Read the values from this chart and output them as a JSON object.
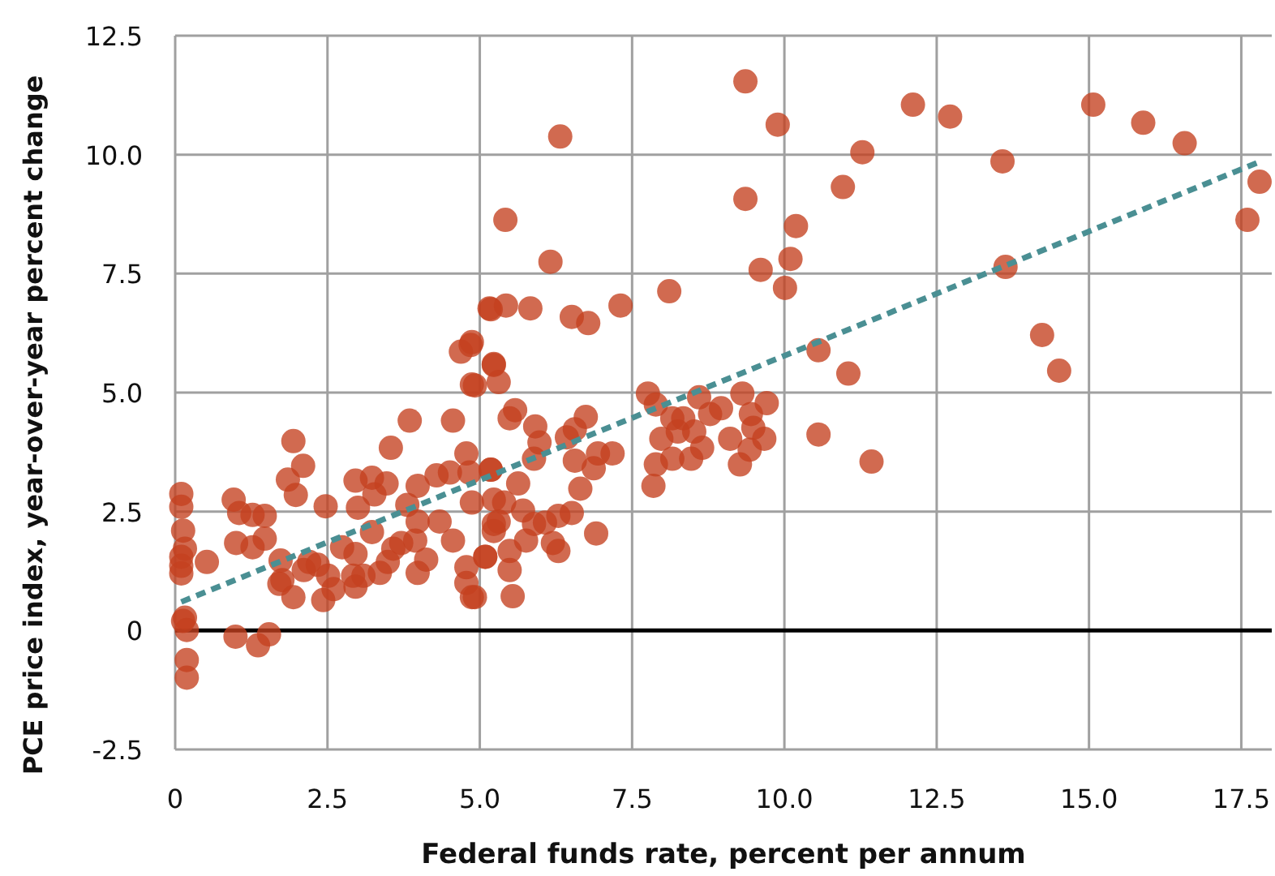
{
  "chart_data": {
    "type": "scatter",
    "xlabel": "Federal funds rate, percent per annum",
    "ylabel": "PCE price index, year-over-year percent change",
    "xlim": [
      0,
      18
    ],
    "ylim": [
      -2.5,
      12.5
    ],
    "xticks": [
      {
        "value": 0,
        "label": "0"
      },
      {
        "value": 2.5,
        "label": "2.5"
      },
      {
        "value": 5,
        "label": "5.0"
      },
      {
        "value": 7.5,
        "label": "7.5"
      },
      {
        "value": 10,
        "label": "10.0"
      },
      {
        "value": 12.5,
        "label": "12.5"
      },
      {
        "value": 15,
        "label": "15.0"
      },
      {
        "value": 17.5,
        "label": "17.5"
      }
    ],
    "yticks": [
      {
        "value": -2.5,
        "label": "-2.5"
      },
      {
        "value": 0,
        "label": "0"
      },
      {
        "value": 2.5,
        "label": "2.5"
      },
      {
        "value": 5,
        "label": "5.0"
      },
      {
        "value": 7.5,
        "label": "7.5"
      },
      {
        "value": 10,
        "label": "10.0"
      },
      {
        "value": 12.5,
        "label": "12.5"
      }
    ],
    "grid": true,
    "ref_lines": [
      {
        "axis": "y",
        "value": 0,
        "color": "#000000"
      }
    ],
    "series": [
      {
        "color": "#c4401f",
        "marker": "circle",
        "x": [
          0.1,
          0.1,
          0.13,
          0.16,
          0.1,
          0.1,
          0.1,
          0.16,
          0.13,
          0.19,
          0.19,
          0.19,
          0.52,
          0.96,
          1.05,
          1.27,
          1.47,
          1.0,
          1.27,
          1.47,
          1.73,
          1.71,
          1.76,
          1.94,
          0.99,
          1.36,
          1.54,
          1.94,
          2.1,
          1.85,
          1.98,
          2.47,
          2.2,
          2.11,
          2.34,
          2.43,
          2.6,
          2.51,
          2.74,
          2.92,
          2.96,
          3.09,
          2.96,
          3.0,
          2.96,
          3.23,
          3.27,
          3.47,
          3.54,
          3.23,
          3.36,
          3.49,
          3.58,
          3.71,
          3.85,
          3.98,
          3.81,
          3.98,
          3.94,
          3.98,
          4.12,
          4.29,
          4.56,
          4.51,
          4.34,
          4.56,
          4.78,
          4.83,
          4.87,
          4.78,
          4.78,
          4.87,
          5.23,
          5.18,
          5.09,
          4.69,
          4.85,
          5.18,
          5.23,
          4.87,
          5.42,
          6.16,
          5.16,
          5.43,
          5.83,
          6.51,
          6.78,
          7.31,
          8.11,
          9.36,
          10.19,
          9.61,
          10.1,
          10.01,
          10.56,
          10.56,
          4.87,
          5.23,
          5.31,
          4.92,
          5.58,
          5.49,
          5.91,
          5.98,
          5.89,
          6.43,
          6.56,
          6.74,
          6.56,
          6.87,
          6.94,
          7.18,
          6.65,
          6.91,
          5.63,
          5.18,
          5.23,
          5.4,
          5.71,
          5.76,
          5.89,
          6.07,
          6.29,
          6.51,
          5.23,
          5.31,
          5.09,
          5.49,
          5.49,
          5.54,
          4.92,
          6.2,
          6.29,
          7.76,
          7.89,
          8.16,
          8.34,
          8.25,
          8.52,
          7.98,
          8.65,
          8.16,
          8.47,
          7.89,
          7.85,
          8.6,
          8.78,
          8.96,
          9.31,
          9.71,
          9.45,
          9.49,
          9.67,
          9.11,
          9.43,
          9.27,
          12.11,
          12.72,
          15.07,
          15.89,
          16.57,
          9.89,
          11.28,
          10.96,
          13.58,
          17.8,
          17.6,
          13.63,
          11.05,
          14.23,
          14.51,
          11.43,
          9.36,
          6.32
        ],
        "values": [
          2.87,
          2.6,
          2.1,
          1.72,
          1.55,
          1.36,
          1.2,
          0.27,
          0.2,
          0.01,
          -0.62,
          -0.99,
          1.44,
          2.75,
          2.47,
          2.43,
          2.41,
          1.84,
          1.75,
          1.93,
          1.47,
          0.98,
          1.06,
          0.7,
          -0.13,
          -0.31,
          -0.08,
          3.98,
          3.46,
          3.17,
          2.85,
          2.61,
          1.44,
          1.27,
          1.38,
          0.64,
          0.87,
          1.15,
          1.75,
          1.15,
          0.92,
          1.15,
          1.61,
          2.58,
          3.15,
          3.21,
          2.86,
          3.09,
          3.84,
          2.07,
          1.21,
          1.44,
          1.72,
          1.84,
          4.41,
          3.04,
          2.64,
          2.29,
          1.89,
          1.21,
          1.49,
          3.26,
          4.41,
          3.32,
          2.29,
          1.89,
          3.72,
          3.32,
          2.69,
          1.33,
          1.0,
          0.7,
          2.24,
          3.38,
          1.55,
          5.86,
          6.0,
          6.75,
          5.6,
          5.17,
          8.63,
          7.75,
          6.77,
          6.83,
          6.77,
          6.59,
          6.46,
          6.83,
          7.13,
          9.07,
          8.5,
          7.58,
          7.81,
          7.2,
          5.89,
          4.12,
          6.06,
          5.58,
          5.22,
          5.15,
          4.63,
          4.46,
          4.29,
          3.95,
          3.61,
          4.06,
          4.23,
          4.49,
          3.57,
          3.41,
          3.72,
          3.72,
          2.98,
          2.04,
          3.09,
          3.38,
          2.75,
          2.69,
          2.52,
          1.89,
          2.24,
          2.27,
          2.41,
          2.47,
          2.09,
          2.29,
          1.55,
          1.67,
          1.27,
          0.72,
          0.7,
          1.84,
          1.67,
          4.98,
          4.75,
          4.46,
          4.46,
          4.18,
          4.18,
          4.03,
          3.84,
          3.61,
          3.61,
          3.49,
          3.04,
          4.9,
          4.55,
          4.67,
          4.98,
          4.78,
          4.55,
          4.26,
          4.03,
          4.03,
          3.8,
          3.49,
          11.05,
          10.8,
          11.05,
          10.67,
          10.24,
          10.63,
          10.05,
          9.32,
          9.86,
          9.43,
          8.63,
          7.64,
          5.4,
          6.21,
          5.46,
          3.55,
          11.54,
          10.38
        ]
      },
      {
        "type": "line",
        "color": "#4a8f93",
        "line_style": "dashed",
        "marker": "none",
        "x": [
          0.1,
          17.8
        ],
        "values": [
          0.6,
          9.85
        ]
      }
    ]
  }
}
